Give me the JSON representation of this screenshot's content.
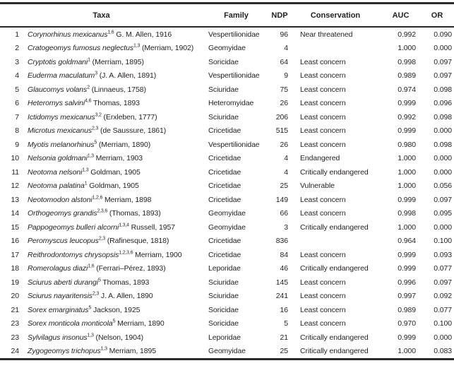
{
  "table": {
    "columns": {
      "taxa": "Taxa",
      "family": "Family",
      "ndp": "NDP",
      "conservation": "Conservation",
      "auc": "AUC",
      "or": "OR"
    },
    "rows": [
      {
        "num": "1",
        "name": "Corynorhinus mexicanus",
        "sup": "1,6",
        "author": "G. M. Allen, 1916",
        "family": "Vespertilionidae",
        "ndp": "96",
        "conservation": "Near threatened",
        "auc": "0.992",
        "or": "0.090"
      },
      {
        "num": "2",
        "name": "Cratogeomys fumosus neglectus",
        "sup": "1,3",
        "author": "(Merriam, 1902)",
        "family": "Geomyidae",
        "ndp": "4",
        "conservation": "",
        "auc": "1.000",
        "or": "0.000"
      },
      {
        "num": "3",
        "name": "Cryptotis goldmani",
        "sup": "1",
        "author": "(Merriam, 1895)",
        "family": "Soricidae",
        "ndp": "64",
        "conservation": "Least concern",
        "auc": "0.998",
        "or": "0.097"
      },
      {
        "num": "4",
        "name": "Euderma maculatum",
        "sup": "3",
        "author": "(J. A. Allen, 1891)",
        "family": "Vespertilionidae",
        "ndp": "9",
        "conservation": "Least concern",
        "auc": "0.989",
        "or": "0.097"
      },
      {
        "num": "5",
        "name": "Glaucomys volans",
        "sup": "2",
        "author": "(Linnaeus, 1758)",
        "family": "Sciuridae",
        "ndp": "75",
        "conservation": "Least concern",
        "auc": "0.974",
        "or": "0.098"
      },
      {
        "num": "6",
        "name": "Heteromys salvini",
        "sup": "4,6",
        "author": "Thomas, 1893",
        "family": "Heteromyidae",
        "ndp": "26",
        "conservation": "Least concern",
        "auc": "0.999",
        "or": "0.096"
      },
      {
        "num": "7",
        "name": "Ictidomys mexicanus",
        "sup": "3,2",
        "author": "(Erxleben, 1777)",
        "family": "Sciuridae",
        "ndp": "206",
        "conservation": "Least concern",
        "auc": "0.992",
        "or": "0.098"
      },
      {
        "num": "8",
        "name": "Microtus mexicanus",
        "sup": "2,3",
        "author": "(de Saussure, 1861)",
        "family": "Cricetidae",
        "ndp": "515",
        "conservation": "Least concern",
        "auc": "0.999",
        "or": "0.000"
      },
      {
        "num": "9",
        "name": "Myotis melanorhinus",
        "sup": "5",
        "author": "(Merriam, 1890)",
        "family": "Vespertilionidae",
        "ndp": "26",
        "conservation": "Least concern",
        "auc": "0.980",
        "or": "0.098"
      },
      {
        "num": "10",
        "name": "Nelsonia goldmani",
        "sup": "1,3",
        "author": "Merriam, 1903",
        "family": "Cricetidae",
        "ndp": "4",
        "conservation": "Endangered",
        "auc": "1.000",
        "or": "0.000"
      },
      {
        "num": "11",
        "name": "Neotoma nelsoni",
        "sup": "1,3",
        "author": "Goldman, 1905",
        "family": "Cricetidae",
        "ndp": "4",
        "conservation": "Critically endangered",
        "auc": "1.000",
        "or": "0.000"
      },
      {
        "num": "12",
        "name": "Neotoma palatina",
        "sup": "1",
        "author": "Goldman, 1905",
        "family": "Cricetidae",
        "ndp": "25",
        "conservation": "Vulnerable",
        "auc": "1.000",
        "or": "0.056"
      },
      {
        "num": "13",
        "name": "Neotomodon alstoni",
        "sup": "1,2,6",
        "author": "Merriam, 1898",
        "family": "Cricetidae",
        "ndp": "149",
        "conservation": "Least concern",
        "auc": "0.999",
        "or": "0.097"
      },
      {
        "num": "14",
        "name": "Orthogeomys grandis",
        "sup": "2,3,6",
        "author": "(Thomas, 1893)",
        "family": "Geomyidae",
        "ndp": "66",
        "conservation": "Least concern",
        "auc": "0.998",
        "or": "0.095"
      },
      {
        "num": "15",
        "name": "Pappogeomys bulleri alcorni",
        "sup": "1,3,4",
        "author": "Russell, 1957",
        "family": "Geomyidae",
        "ndp": "3",
        "conservation": "Critically endangered",
        "auc": "1.000",
        "or": "0.000"
      },
      {
        "num": "16",
        "name": "Peromyscus leucopus",
        "sup": "2,3",
        "author": "(Rafinesque, 1818)",
        "family": "Cricetidae",
        "ndp": "836",
        "conservation": "",
        "auc": "0.964",
        "or": "0.100"
      },
      {
        "num": "17",
        "name": "Reithrodontomys chrysopsis",
        "sup": "1,2,3,6",
        "author": "Merriam, 1900",
        "family": "Cricetidae",
        "ndp": "84",
        "conservation": "Least concern",
        "auc": "0.999",
        "or": "0.093"
      },
      {
        "num": "18",
        "name": "Romerolagus diazi",
        "sup": "1,6",
        "author": "(Ferrari–Pérez, 1893)",
        "family": "Leporidae",
        "ndp": "46",
        "conservation": "Critically endangered",
        "auc": "0.999",
        "or": "0.077"
      },
      {
        "num": "19",
        "name": "Sciurus aberti durangi",
        "sup": "5",
        "author": "Thomas, 1893",
        "family": "Sciuridae",
        "ndp": "145",
        "conservation": "Least concern",
        "auc": "0.996",
        "or": "0.097"
      },
      {
        "num": "20",
        "name": "Sciurus nayaritensis",
        "sup": "2,3",
        "author": "J. A. Allen, 1890",
        "family": "Sciuridae",
        "ndp": "241",
        "conservation": "Least concern",
        "auc": "0.997",
        "or": "0.092"
      },
      {
        "num": "21",
        "name": "Sorex emarginatus",
        "sup": "5",
        "author": "Jackson, 1925",
        "family": "Soricidae",
        "ndp": "16",
        "conservation": "Least concern",
        "auc": "0.989",
        "or": "0.077"
      },
      {
        "num": "23",
        "name": "Sorex monticola monticola",
        "sup": "5",
        "author": "Merriam, 1890",
        "family": "Soricidae",
        "ndp": "5",
        "conservation": "Least concern",
        "auc": "0.970",
        "or": "0.100"
      },
      {
        "num": "23",
        "name": "Sylvilagus insonus",
        "sup": "1,3",
        "author": "(Nelson, 1904)",
        "family": "Leporidae",
        "ndp": "21",
        "conservation": "Critically endangered",
        "auc": "0.999",
        "or": "0.000"
      },
      {
        "num": "24",
        "name": "Zygogeomys trichopus",
        "sup": "1,3",
        "author": "Merriam, 1895",
        "family": "Geomyidae",
        "ndp": "25",
        "conservation": "Critically endangered",
        "auc": "1.000",
        "or": "0.083"
      }
    ]
  }
}
